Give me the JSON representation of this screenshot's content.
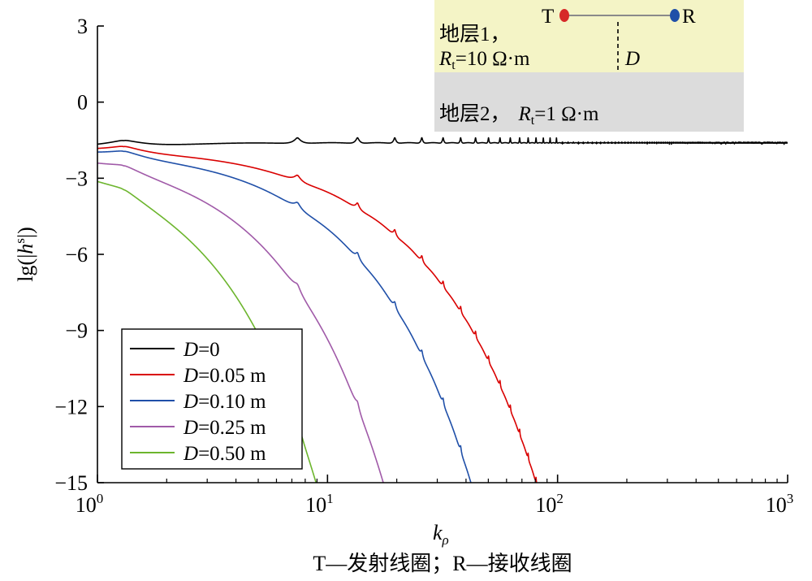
{
  "chart_data": {
    "type": "line",
    "xlabel_base": "k",
    "xlabel_sub": "ρ",
    "ylabel": "lg(|h^s|)",
    "x_scale": "log",
    "xlim": [
      1,
      1000
    ],
    "ylim": [
      -15,
      3
    ],
    "y_ticks": [
      3,
      0,
      -3,
      -6,
      -9,
      -12,
      -15
    ],
    "y_tick_labels": [
      "3",
      "0",
      "−3",
      "−6",
      "−9",
      "−12",
      "−15"
    ],
    "x_ticks": [
      1,
      10,
      100,
      1000
    ],
    "x_tick_labels": [
      {
        "base": "10",
        "exp": "0"
      },
      {
        "base": "10",
        "exp": "1"
      },
      {
        "base": "10",
        "exp": "2"
      },
      {
        "base": "10",
        "exp": "3"
      }
    ],
    "grid": false,
    "legend_position": "lower-left",
    "series": [
      {
        "name": "D=0",
        "D": 0,
        "color": "#000000"
      },
      {
        "name": "D=0.05 m",
        "D": 0.05,
        "color": "#d90000"
      },
      {
        "name": "D=0.10 m",
        "D": 0.1,
        "color": "#1f4fa8"
      },
      {
        "name": "D=0.25 m",
        "D": 0.25,
        "color": "#a05aa8"
      },
      {
        "name": "D=0.50 m",
        "D": 0.5,
        "color": "#6cb52d"
      }
    ],
    "inset": {
      "transmitter": "T",
      "receiver": "R",
      "layer1_line1": "地层1，",
      "layer1_line2_R": "R",
      "layer1_line2_sub": "t",
      "layer1_line2_rest": "=10 Ω·m",
      "depth_label": "D",
      "layer2_text": "地层2，",
      "layer2_R": "R",
      "layer2_sub": "t",
      "layer2_rest": "=1 Ω·m",
      "transmitter_color": "#d62828",
      "receiver_color": "#1f4fa8",
      "layer1_color": "#f4f4c6",
      "layer2_color": "#dcdcdc"
    },
    "caption": "T—发射线圈；R—接收线圈"
  }
}
